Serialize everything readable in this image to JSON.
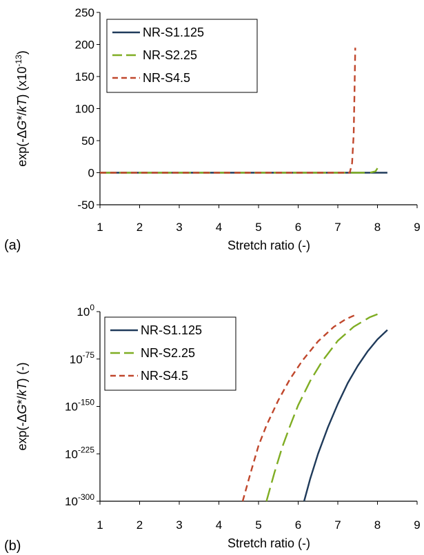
{
  "chart_data": [
    {
      "panel_label": "(a)",
      "type": "line",
      "xlabel": "Stretch ratio (-)",
      "ylabel": {
        "prefix": "exp(-Δ",
        "g": "G",
        "star": "*/",
        "kt": "kT",
        "close": ")",
        "unit": "(x10",
        "unit_exp": "-13",
        "unit_close": ")"
      },
      "xlim": [
        1,
        9
      ],
      "ylim": [
        -50,
        250
      ],
      "xticks": [
        "1",
        "2",
        "3",
        "4",
        "5",
        "6",
        "7",
        "8",
        "9"
      ],
      "yticks": [
        "-50",
        "0",
        "50",
        "100",
        "150",
        "200",
        "250"
      ],
      "yscale": "linear",
      "grid": false,
      "legend_position": "top-left",
      "series": [
        {
          "name": "NR-S1.125",
          "color": "#1f3a5a",
          "dash": "solid",
          "x": [
            1,
            2,
            3,
            4,
            5,
            6,
            7,
            8,
            8.25
          ],
          "y": [
            0,
            0,
            0,
            0,
            0,
            0,
            0,
            0,
            0
          ]
        },
        {
          "name": "NR-S2.25",
          "color": "#7fad23",
          "dash": "longdash",
          "x": [
            1,
            2,
            3,
            4,
            5,
            6,
            7,
            7.8,
            7.95,
            8.0
          ],
          "y": [
            0,
            0,
            0,
            0,
            0,
            0,
            0,
            0,
            2,
            7
          ]
        },
        {
          "name": "NR-S4.5",
          "color": "#c0472c",
          "dash": "dash",
          "x": [
            1,
            2,
            3,
            4,
            5,
            6,
            7,
            7.3,
            7.36,
            7.4,
            7.42,
            7.44
          ],
          "y": [
            0,
            0,
            0,
            0,
            0,
            0,
            0,
            0,
            15,
            60,
            120,
            195
          ]
        }
      ]
    },
    {
      "panel_label": "(b)",
      "type": "line",
      "xlabel": "Stretch ratio (-)",
      "ylabel": {
        "prefix": "exp(-Δ",
        "g": "G",
        "star": "*/",
        "kt": "kT",
        "close": ")",
        "unit": "(-)"
      },
      "xlim": [
        1,
        9
      ],
      "ylim_log10": [
        -300,
        0
      ],
      "xticks": [
        "1",
        "2",
        "3",
        "4",
        "5",
        "6",
        "7",
        "8",
        "9"
      ],
      "yticks": [
        {
          "base": "10",
          "exp": "0"
        },
        {
          "base": "10",
          "exp": "-75"
        },
        {
          "base": "10",
          "exp": "-150"
        },
        {
          "base": "10",
          "exp": "-225"
        },
        {
          "base": "10",
          "exp": "-300"
        }
      ],
      "yscale": "log",
      "grid": false,
      "legend_position": "top-left",
      "series": [
        {
          "name": "NR-S1.125",
          "color": "#1f3a5a",
          "dash": "solid",
          "x": [
            6.15,
            6.3,
            6.5,
            6.75,
            7.0,
            7.25,
            7.5,
            7.75,
            8.0,
            8.25
          ],
          "log10_y": [
            -300,
            -265,
            -225,
            -183,
            -146,
            -113,
            -86,
            -63,
            -44,
            -29
          ]
        },
        {
          "name": "NR-S2.25",
          "color": "#7fad23",
          "dash": "longdash",
          "x": [
            5.2,
            5.4,
            5.6,
            5.8,
            6.0,
            6.3,
            6.6,
            7.0,
            7.4,
            7.8,
            8.0
          ],
          "log10_y": [
            -300,
            -255,
            -214,
            -180,
            -148,
            -110,
            -79,
            -46,
            -24,
            -9,
            -4
          ]
        },
        {
          "name": "NR-S4.5",
          "color": "#c0472c",
          "dash": "dash",
          "x": [
            4.6,
            4.8,
            5.0,
            5.2,
            5.5,
            5.8,
            6.1,
            6.5,
            6.9,
            7.2,
            7.45
          ],
          "log10_y": [
            -300,
            -255,
            -212,
            -180,
            -140,
            -106,
            -78,
            -47,
            -24,
            -12,
            -5
          ]
        }
      ]
    }
  ]
}
